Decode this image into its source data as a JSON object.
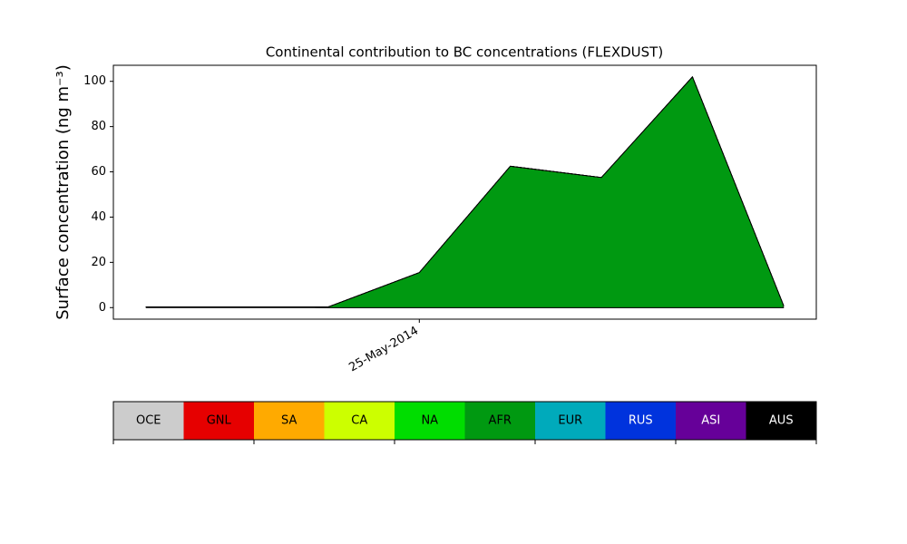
{
  "chart_data": {
    "type": "stacked_area",
    "title": "Continental contribution to BC concentrations (FLEXDUST)",
    "y_label": "Surface concentration (ng m⁻³)",
    "categories": [
      null,
      null,
      null,
      "25-May-2014",
      null,
      null,
      null,
      null
    ],
    "series": [
      {
        "name": "OCE",
        "color": "#cccccc",
        "values": [
          0,
          0,
          0,
          0,
          0,
          0,
          0,
          0
        ]
      },
      {
        "name": "GNL",
        "color": "#e60000",
        "values": [
          0,
          0,
          0,
          0,
          0,
          0,
          0,
          0
        ]
      },
      {
        "name": "SA",
        "color": "#ffaa00",
        "values": [
          0.3,
          0.3,
          0,
          0,
          0,
          0,
          0,
          0
        ]
      },
      {
        "name": "CA",
        "color": "#ccff00",
        "values": [
          0,
          0,
          0,
          0,
          0,
          0,
          0,
          0
        ]
      },
      {
        "name": "NA",
        "color": "#00dd00",
        "values": [
          0,
          0,
          0,
          0,
          0,
          0,
          0,
          0
        ]
      },
      {
        "name": "AFR",
        "color": "#009911",
        "values": [
          0,
          0,
          0.3,
          15.5,
          62.5,
          57.5,
          102,
          1
        ]
      },
      {
        "name": "EUR",
        "color": "#00aabb",
        "values": [
          0,
          0,
          0,
          0,
          0,
          0,
          0,
          0
        ]
      },
      {
        "name": "RUS",
        "color": "#0033dd",
        "values": [
          0,
          0,
          0,
          0,
          0,
          0,
          0,
          0
        ]
      },
      {
        "name": "ASI",
        "color": "#660099",
        "values": [
          0,
          0,
          0,
          0,
          0,
          0,
          0,
          0
        ]
      },
      {
        "name": "AUS",
        "color": "#000000",
        "values": [
          0,
          0,
          0,
          0,
          0,
          0,
          0,
          0
        ]
      }
    ],
    "ylim": [
      -5.1,
      107.1
    ],
    "yticks": [
      0,
      20,
      40,
      60,
      80,
      100
    ],
    "grid": false
  }
}
